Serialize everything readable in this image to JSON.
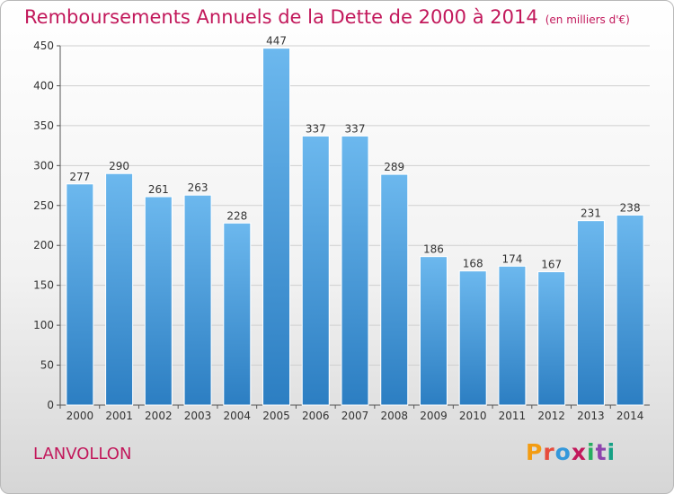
{
  "title": "Remboursements Annuels de la Dette de 2000 à 2014",
  "subtitle": "(en milliers d'€)",
  "city": "LANVOLLON",
  "brand": {
    "text": "Proxiti",
    "colors": [
      "#f39c12",
      "#e74c3c",
      "#3498db",
      "#c2185b",
      "#27ae60",
      "#8e44ad",
      "#16a085"
    ]
  },
  "colors": {
    "title": "#c2185b",
    "bar_top": "#6cb8ee",
    "bar_bottom": "#2c7ec2",
    "grid": "#cfcfcf"
  },
  "chart_data": {
    "type": "bar",
    "title": "Remboursements Annuels de la Dette de 2000 à 2014",
    "xlabel": "",
    "ylabel": "",
    "categories": [
      "2000",
      "2001",
      "2002",
      "2003",
      "2004",
      "2005",
      "2006",
      "2007",
      "2008",
      "2009",
      "2010",
      "2011",
      "2012",
      "2013",
      "2014"
    ],
    "values": [
      277,
      290,
      261,
      263,
      228,
      447,
      337,
      337,
      289,
      186,
      168,
      174,
      167,
      231,
      238
    ],
    "ylim": [
      0,
      450
    ],
    "yticks": [
      0,
      50,
      100,
      150,
      200,
      250,
      300,
      350,
      400,
      450
    ],
    "grid": true
  }
}
